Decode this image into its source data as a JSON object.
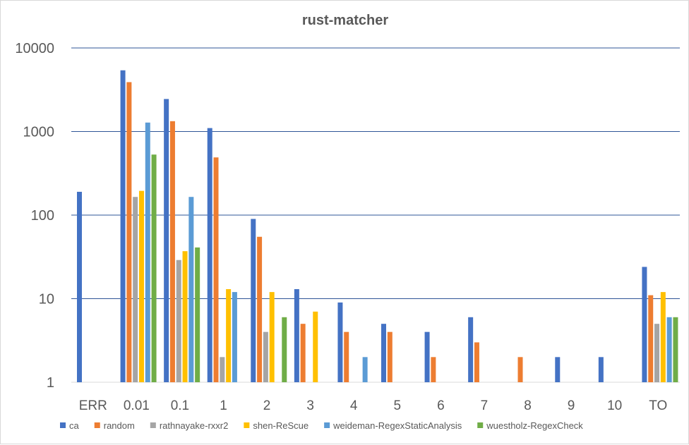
{
  "chart_data": {
    "type": "bar",
    "title": "rust-matcher",
    "xlabel": "",
    "ylabel": "",
    "yscale": "log",
    "ylim": [
      1,
      10000
    ],
    "yticks": [
      "1",
      "10",
      "100",
      "1000",
      "10000"
    ],
    "grid": true,
    "legend_position": "bottom",
    "categories": [
      "ERR",
      "0.01",
      "0.1",
      "1",
      "2",
      "3",
      "4",
      "5",
      "6",
      "7",
      "8",
      "9",
      "10",
      "TO"
    ],
    "series": [
      {
        "name": "ca",
        "color": "#4472C4",
        "values": [
          190,
          5400,
          2450,
          1100,
          90,
          13,
          9,
          5,
          4,
          6,
          null,
          2,
          2,
          24
        ]
      },
      {
        "name": "random",
        "color": "#ED7D31",
        "values": [
          null,
          3900,
          1330,
          490,
          55,
          5,
          4,
          4,
          2,
          3,
          2,
          null,
          null,
          11
        ]
      },
      {
        "name": "rathnayake-rxxr2",
        "color": "#A5A5A5",
        "values": [
          null,
          165,
          29,
          2,
          4,
          null,
          null,
          null,
          null,
          null,
          null,
          null,
          null,
          5
        ]
      },
      {
        "name": "shen-ReScue",
        "color": "#FFC000",
        "values": [
          null,
          195,
          37,
          13,
          12,
          7,
          null,
          null,
          null,
          null,
          null,
          null,
          null,
          12
        ]
      },
      {
        "name": "weideman-RegexStaticAnalysis",
        "color": "#5B9BD5",
        "values": [
          null,
          1280,
          165,
          12,
          null,
          null,
          2,
          null,
          null,
          null,
          null,
          null,
          null,
          6
        ]
      },
      {
        "name": "wuestholz-RegexCheck",
        "color": "#70AD47",
        "values": [
          null,
          530,
          41,
          null,
          6,
          null,
          null,
          null,
          null,
          null,
          null,
          null,
          null,
          6
        ]
      }
    ]
  }
}
